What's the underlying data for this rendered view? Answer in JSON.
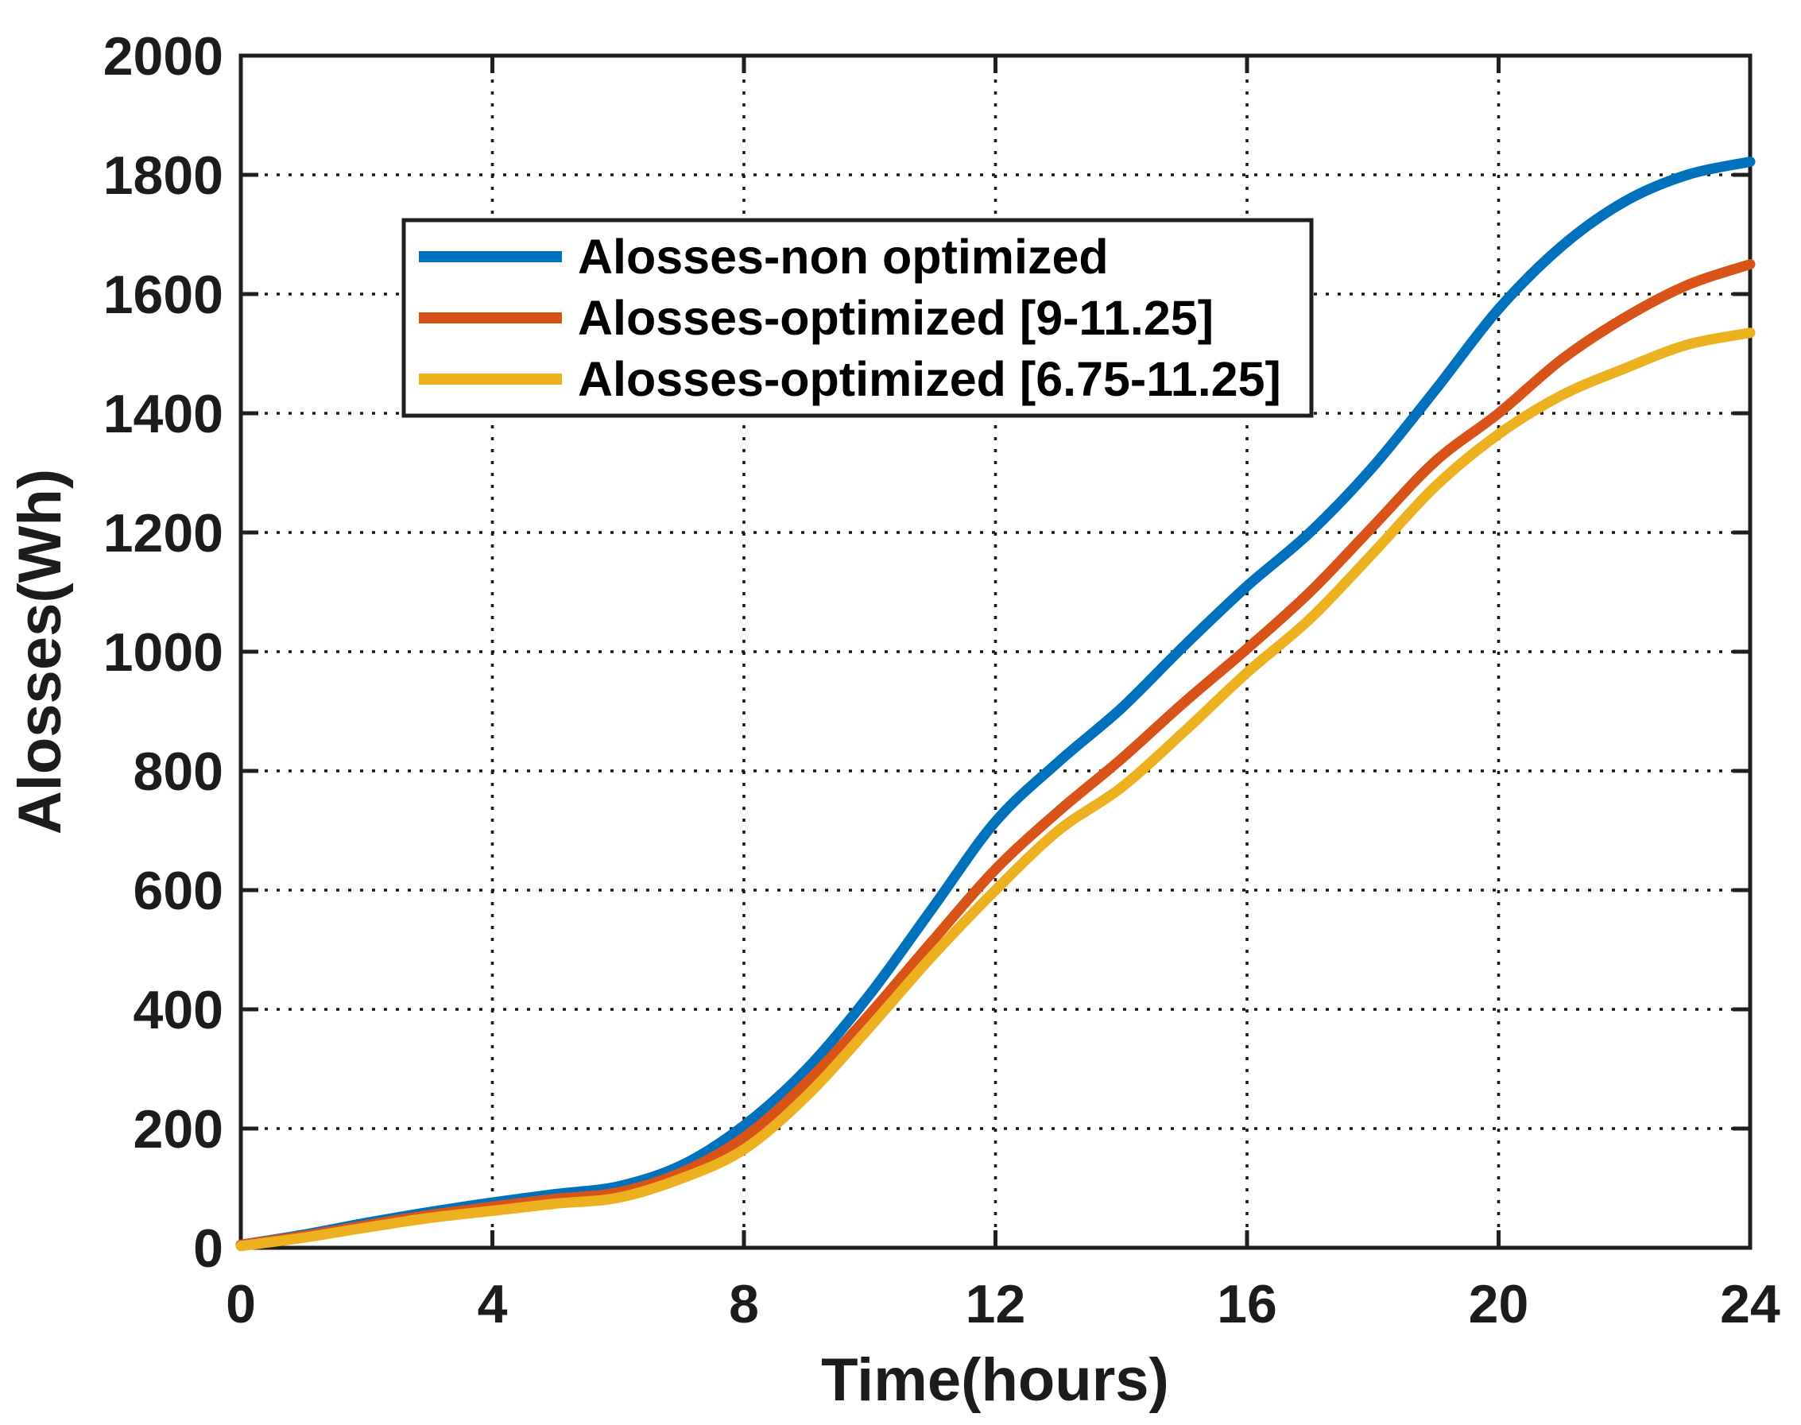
{
  "figure": {
    "background": "#ffffff",
    "axis_color": "#1f1f1f",
    "grid_color": "#1a1a1a",
    "text_color": "#1c1c1c",
    "legend_border_color": "#1f1f1f",
    "legend_background": "#ffffff"
  },
  "chart_data": {
    "type": "line",
    "title": "",
    "xlabel": "Time(hours)",
    "ylabel": "Alosses(Wh)",
    "xlim": [
      0,
      24
    ],
    "ylim": [
      0,
      2000
    ],
    "xticks": [
      0,
      4,
      8,
      12,
      16,
      20,
      24
    ],
    "yticks": [
      0,
      200,
      400,
      600,
      800,
      1000,
      1200,
      1400,
      1600,
      1800,
      2000
    ],
    "grid": true,
    "grid_style": "dotted",
    "legend_position": "upper-left-inside",
    "x": [
      0,
      1,
      2,
      3,
      4,
      5,
      6,
      7,
      8,
      9,
      10,
      11,
      12,
      13,
      14,
      15,
      16,
      17,
      18,
      19,
      20,
      21,
      22,
      23,
      24
    ],
    "series": [
      {
        "name": "Alosses-non optimized",
        "color": "#0072BD",
        "values": [
          5,
          22,
          42,
          60,
          76,
          90,
          103,
          138,
          205,
          300,
          425,
          570,
          715,
          815,
          905,
          1010,
          1110,
          1200,
          1310,
          1440,
          1575,
          1680,
          1755,
          1800,
          1822
        ]
      },
      {
        "name": "Alosses-optimized [9-11.25]",
        "color": "#D95319",
        "values": [
          5,
          20,
          38,
          55,
          69,
          82,
          93,
          126,
          185,
          278,
          392,
          515,
          635,
          732,
          820,
          915,
          1005,
          1100,
          1210,
          1320,
          1400,
          1490,
          1560,
          1615,
          1650
        ]
      },
      {
        "name": "Alosses-optimized [6.75-11.25]",
        "color": "#EDB120",
        "values": [
          3,
          17,
          34,
          50,
          62,
          74,
          84,
          116,
          165,
          255,
          370,
          490,
          600,
          700,
          772,
          866,
          965,
          1055,
          1165,
          1278,
          1365,
          1430,
          1475,
          1515,
          1535
        ]
      }
    ]
  }
}
